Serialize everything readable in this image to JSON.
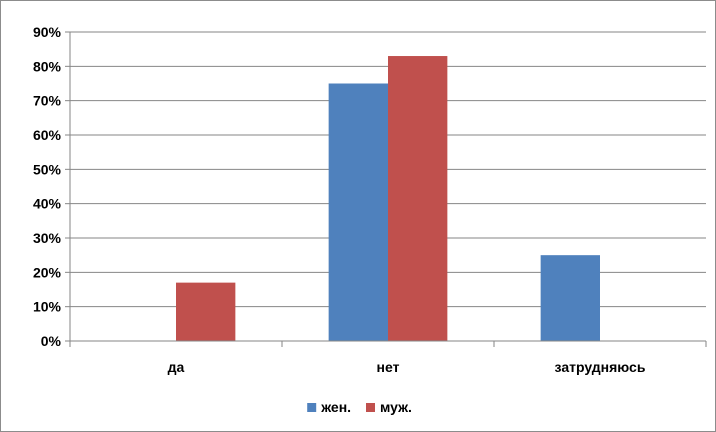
{
  "chart_data": {
    "type": "bar",
    "categories": [
      "да",
      "нет",
      "затрудняюсь"
    ],
    "series": [
      {
        "name": "жен.",
        "values": [
          0,
          75,
          25
        ],
        "color": "#4f81bd"
      },
      {
        "name": "муж.",
        "values": [
          17,
          83,
          0
        ],
        "color": "#c0504d"
      }
    ],
    "title": "",
    "xlabel": "",
    "ylabel": "",
    "ylim": [
      0,
      90
    ],
    "yticks": [
      "0%",
      "10%",
      "20%",
      "30%",
      "40%",
      "50%",
      "60%",
      "70%",
      "80%",
      "90%"
    ],
    "y_unit": "%",
    "grid": true,
    "legend": "bottom",
    "colors": {
      "grid": "#868686",
      "axis": "#868686",
      "frame": "#8c8c8c"
    }
  }
}
